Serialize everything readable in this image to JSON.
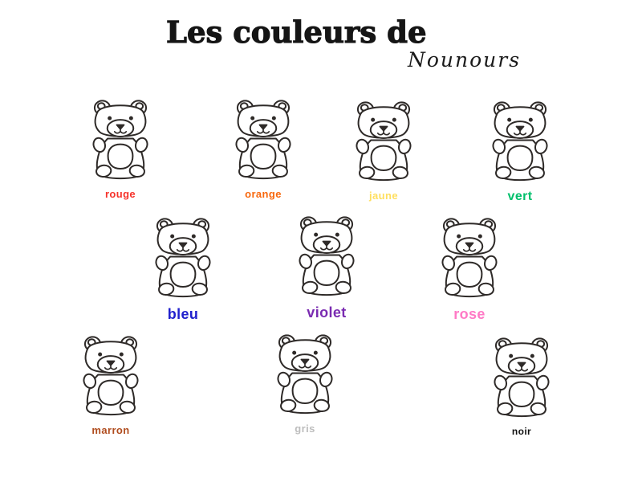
{
  "page": {
    "background": "#ffffff"
  },
  "title": {
    "main": "Les couleurs de",
    "script": "Nounours",
    "color": "#151515"
  },
  "illustration": {
    "name": "teddy-bear-outline",
    "stroke_color": "#2e2a28"
  },
  "bears": [
    {
      "label": "rouge",
      "color": "#F6332B"
    },
    {
      "label": "orange",
      "color": "#F8680E"
    },
    {
      "label": "jaune",
      "color": "#FFDF5E"
    },
    {
      "label": "vert",
      "color": "#00C06C"
    },
    {
      "label": "bleu",
      "color": "#2121CD"
    },
    {
      "label": "violet",
      "color": "#7A2BB1"
    },
    {
      "label": "rose",
      "color": "#FF7AC6"
    },
    {
      "label": "marron",
      "color": "#B04D1F"
    },
    {
      "label": "gris",
      "color": "#BDBDBD"
    },
    {
      "label": "noir",
      "color": "#121212"
    }
  ]
}
